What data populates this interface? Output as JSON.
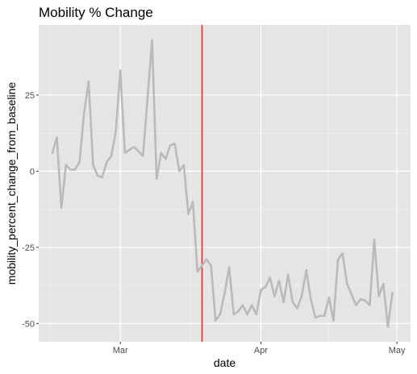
{
  "chart_data": {
    "type": "line",
    "title": "Mobility % Change",
    "xlabel": "date",
    "ylabel": "mobility_percent_change_from_baseline",
    "x_ticks": [
      {
        "date": "2020-03-01",
        "label": "Mar"
      },
      {
        "date": "2020-04-01",
        "label": "Apr"
      },
      {
        "date": "2020-05-01",
        "label": "May"
      }
    ],
    "y_ticks": [
      25,
      0,
      -25,
      -50
    ],
    "xlim": [
      "2020-02-12",
      "2020-05-04"
    ],
    "ylim": [
      -56,
      48
    ],
    "grid": true,
    "vline": {
      "date": "2020-03-19",
      "color": "#e41a1c"
    },
    "series": [
      {
        "color": "#bababa",
        "x": [
          "2020-02-15",
          "2020-02-16",
          "2020-02-17",
          "2020-02-18",
          "2020-02-19",
          "2020-02-20",
          "2020-02-21",
          "2020-02-22",
          "2020-02-23",
          "2020-02-24",
          "2020-02-25",
          "2020-02-26",
          "2020-02-27",
          "2020-02-28",
          "2020-02-29",
          "2020-03-01",
          "2020-03-02",
          "2020-03-03",
          "2020-03-04",
          "2020-03-05",
          "2020-03-06",
          "2020-03-07",
          "2020-03-08",
          "2020-03-09",
          "2020-03-10",
          "2020-03-11",
          "2020-03-12",
          "2020-03-13",
          "2020-03-14",
          "2020-03-15",
          "2020-03-16",
          "2020-03-17",
          "2020-03-18",
          "2020-03-19",
          "2020-03-20",
          "2020-03-21",
          "2020-03-22",
          "2020-03-23",
          "2020-03-24",
          "2020-03-25",
          "2020-03-26",
          "2020-03-27",
          "2020-03-28",
          "2020-03-29",
          "2020-03-30",
          "2020-03-31",
          "2020-04-01",
          "2020-04-02",
          "2020-04-03",
          "2020-04-04",
          "2020-04-05",
          "2020-04-06",
          "2020-04-07",
          "2020-04-08",
          "2020-04-09",
          "2020-04-10",
          "2020-04-11",
          "2020-04-12",
          "2020-04-13",
          "2020-04-14",
          "2020-04-15",
          "2020-04-16",
          "2020-04-17",
          "2020-04-18",
          "2020-04-19",
          "2020-04-20",
          "2020-04-21",
          "2020-04-22",
          "2020-04-23",
          "2020-04-24",
          "2020-04-25",
          "2020-04-26",
          "2020-04-27",
          "2020-04-28",
          "2020-04-29",
          "2020-04-30"
        ],
        "values": [
          6,
          11,
          -12,
          2,
          0.5,
          0.5,
          3,
          19,
          29.5,
          2,
          -1.5,
          -2,
          3,
          5,
          13,
          33,
          6,
          7,
          8,
          6.5,
          5,
          24,
          43,
          -2.5,
          6,
          4,
          8.5,
          9,
          0,
          2,
          -14,
          -10,
          -33,
          -31,
          -29,
          -31,
          -49,
          -47,
          -40,
          -31.5,
          -47,
          -46,
          -44,
          -47,
          -44,
          -47,
          -39,
          -38,
          -35,
          -41,
          -36,
          -43,
          -34,
          -43,
          -45,
          -41,
          -32.5,
          -42,
          -48,
          -47.5,
          -47.5,
          -41.5,
          -49,
          -29,
          -27,
          -37,
          -40.5,
          -44,
          -42,
          -42.5,
          -44,
          -22.5,
          -41,
          -37,
          -51,
          -40
        ]
      }
    ]
  }
}
